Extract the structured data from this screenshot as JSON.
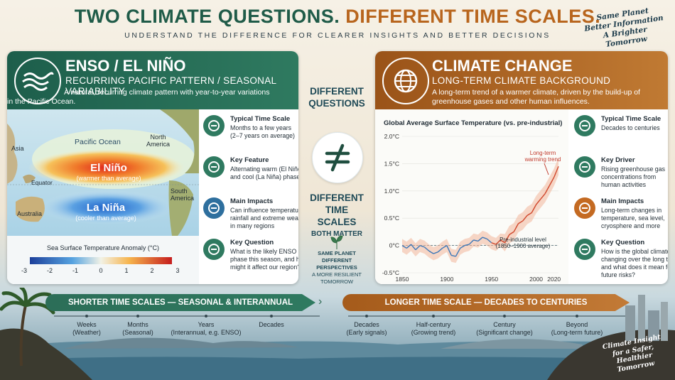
{
  "header": {
    "title_part1": "TWO CLIMATE QUESTIONS.",
    "title_part2": "DIFFERENT TIME SCALES.",
    "subtitle": "UNDERSTAND THE DIFFERENCE FOR CLEARER INSIGHTS AND BETTER DECISIONS",
    "slogan": [
      "Same Planet",
      "Better Information",
      "A Brighter Tomorrow"
    ]
  },
  "enso": {
    "title": "ENSO / EL NIÑO",
    "subtitle": "RECURRING PACIFIC PATTERN / SEASONAL VARIABILITY",
    "description": [
      "A natural, recurring climate pattern with year-to-year variations",
      "in the Pacific Ocean."
    ],
    "map": {
      "pacific": "Pacific Ocean",
      "asia": "Asia",
      "north_america": "North\nAmerica",
      "el_nino": "El Niño",
      "el_nino_note": "(warmer than average)",
      "equator": "Equator",
      "south_america": "South\nAmerica",
      "australia": "Australia",
      "la_nina": "La Niña",
      "la_nina_note": "(cooler than average)",
      "scale_title": "Sea Surface Temperature Anomaly (°C)",
      "scale_ticks": [
        "-3",
        "-2",
        "-1",
        "0",
        "1",
        "2",
        "3"
      ]
    },
    "features": [
      {
        "title": "Typical Time Scale",
        "lines": [
          "Months to a few years",
          "(2–7 years on average)"
        ],
        "icon": "calendar-icon"
      },
      {
        "title": "Key Feature",
        "lines": [
          "Alternating warm (El Niño)",
          "and cool (La Niña) phases"
        ],
        "icon": "waves-icon"
      },
      {
        "title": "Main Impacts",
        "lines": [
          "Can influence temperature,",
          "rainfall and extreme weather",
          "in many regions"
        ],
        "icon": "rain-cloud-icon"
      },
      {
        "title": "Key Question",
        "lines": [
          "What is the likely ENSO",
          "phase this season, and how",
          "might it affect our region?"
        ],
        "icon": "document-icon"
      }
    ]
  },
  "middle": {
    "q1": "DIFFERENT",
    "q2": "QUESTIONS",
    "t1": "DIFFERENT",
    "t2": "TIME SCALES",
    "t3": "BOTH MATTER",
    "s1": "SAME PLANET",
    "s2": "DIFFERENT PERSPECTIVES",
    "s3": "A MORE RESILIENT TOMORROW"
  },
  "climate": {
    "title": "CLIMATE CHANGE",
    "subtitle": "LONG-TERM CLIMATE BACKGROUND",
    "description": [
      "A long-term trend of a warmer climate, driven by the build-up of",
      "greenhouse gases and other human influences."
    ],
    "features": [
      {
        "title": "Typical Time Scale",
        "lines": [
          "Decades to centuries"
        ],
        "icon": "bar-chart-icon"
      },
      {
        "title": "Key Driver",
        "lines": [
          "Rising greenhouse gas",
          "concentrations from",
          "human activities"
        ],
        "icon": "gear-icon"
      },
      {
        "title": "Main Impacts",
        "lines": [
          "Long-term changes in",
          "temperature, sea level,",
          "cryosphere and more"
        ],
        "icon": "thermometer-icon"
      },
      {
        "title": "Key Question",
        "lines": [
          "How is the global climate",
          "changing over the long term,",
          "and what does it mean for",
          "future risks?"
        ],
        "icon": "document-icon"
      }
    ]
  },
  "chart_data": {
    "type": "line",
    "title": "Global Average Surface Temperature (vs. pre-industrial)",
    "x_ticks": [
      "1850",
      "1900",
      "1950",
      "2000",
      "2020"
    ],
    "y_ticks": [
      "2.0°C",
      "1.5°C",
      "1.0°C",
      "0.5°C",
      "0°C",
      "-0.5°C"
    ],
    "xlim": [
      1850,
      2025
    ],
    "ylim": [
      -0.5,
      2.0
    ],
    "annotation_trend": [
      "Long-term",
      "warming trend"
    ],
    "annotation_baseline": [
      "Pre-industrial level",
      "(1850–1900 average)"
    ],
    "series": [
      {
        "x": [
          1850,
          1855,
          1860,
          1865,
          1870,
          1875,
          1880,
          1885,
          1890,
          1895,
          1900,
          1905,
          1910,
          1915,
          1920,
          1925,
          1930,
          1935,
          1940,
          1945,
          1950,
          1955,
          1960,
          1965,
          1970,
          1975,
          1980,
          1985,
          1990,
          1995,
          2000,
          2005,
          2010,
          2015,
          2020,
          2025
        ],
        "y": [
          0.0,
          -0.05,
          0.02,
          -0.08,
          0.0,
          -0.03,
          -0.1,
          -0.15,
          -0.12,
          -0.05,
          0.0,
          -0.18,
          -0.2,
          -0.05,
          0.0,
          0.02,
          0.1,
          0.08,
          0.15,
          0.12,
          0.05,
          0.02,
          0.1,
          0.05,
          0.2,
          0.25,
          0.4,
          0.45,
          0.55,
          0.6,
          0.75,
          0.85,
          0.95,
          1.1,
          1.25,
          1.45
        ]
      }
    ]
  },
  "timeline_short": {
    "bar": "SHORTER TIME SCALES — SEASONAL & INTERANNUAL",
    "labels": [
      {
        "main": "Weeks",
        "sub": "(Weather)"
      },
      {
        "main": "Months",
        "sub": "(Seasonal)"
      },
      {
        "main": "Years",
        "sub": "(Interannual, e.g. ENSO)"
      },
      {
        "main": "Decades",
        "sub": ""
      }
    ]
  },
  "timeline_long": {
    "bar": "LONGER TIME SCALE — DECADES TO CENTURIES",
    "labels": [
      {
        "main": "Decades",
        "sub": "(Early signals)"
      },
      {
        "main": "Half-century",
        "sub": "(Growing trend)"
      },
      {
        "main": "Century",
        "sub": "(Significant change)"
      },
      {
        "main": "Beyond",
        "sub": "(Long-term future)"
      }
    ]
  },
  "footer": {
    "slogan": [
      "Climate Insight",
      "for a Safer, Healthier",
      "Tomorrow"
    ]
  },
  "colors": {
    "green": "#1f5b48",
    "orange": "#b8651d",
    "blue": "#2e6f9e"
  }
}
